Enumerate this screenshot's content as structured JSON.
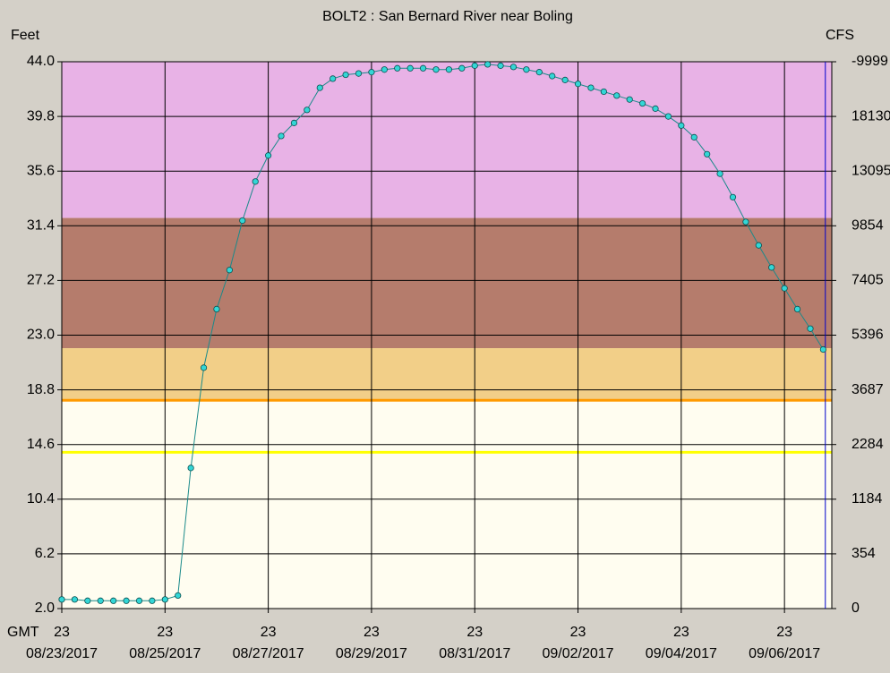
{
  "chart_data": {
    "type": "scatter",
    "title": "BOLT2  :  San Bernard River near Boling",
    "y_label": "Feet",
    "y2_label": "CFS",
    "x_label": "GMT",
    "xtick_hour": "23",
    "xlim": [
      "08/23/2017 23:00",
      "09/07/2017 21:00"
    ],
    "xticks": [
      {
        "value": "08/23/2017 23:00",
        "label": "08/23/2017"
      },
      {
        "value": "08/25/2017 23:00",
        "label": "08/25/2017"
      },
      {
        "value": "08/27/2017 23:00",
        "label": "08/27/2017"
      },
      {
        "value": "08/29/2017 23:00",
        "label": "08/29/2017"
      },
      {
        "value": "08/31/2017 23:00",
        "label": "08/31/2017"
      },
      {
        "value": "09/02/2017 23:00",
        "label": "09/02/2017"
      },
      {
        "value": "09/04/2017 23:00",
        "label": "09/04/2017"
      },
      {
        "value": "09/06/2017 23:00",
        "label": "09/06/2017"
      }
    ],
    "ylim": [
      2.0,
      44.0
    ],
    "yticks": [
      {
        "value": 2,
        "label": "2.0"
      },
      6.2,
      10.4,
      14.6,
      18.8,
      {
        "value": 23,
        "label": "23.0"
      },
      27.2,
      31.4,
      35.6,
      39.8,
      {
        "value": 44,
        "label": "44.0"
      }
    ],
    "y2ticks": [
      0,
      354,
      1184,
      2284,
      3687,
      5396,
      7405,
      9854,
      13095,
      18130,
      -9999
    ],
    "grid": true,
    "background": "#fffdf0",
    "bands": [
      {
        "value": 32,
        "color": "#e8b2e6"
      },
      {
        "value": 22,
        "color": "#b57c6c"
      },
      {
        "value": 18,
        "color": "#f2cf88"
      }
    ],
    "lines": [
      {
        "value": 18,
        "color": "#ff9a00"
      },
      {
        "value": 14,
        "color": "#ffff00"
      }
    ],
    "now_line": {
      "x": "09/07/2017 18:00",
      "color": "#0000cc"
    },
    "series": [
      {
        "color": "#33d6d6",
        "x": [
          "08/23/2017 23:00",
          "08/24/2017 05:00",
          "08/24/2017 11:00",
          "08/24/2017 17:00",
          "08/24/2017 23:00",
          "08/25/2017 05:00",
          "08/25/2017 11:00",
          "08/25/2017 17:00",
          "08/25/2017 23:00",
          "08/26/2017 05:00",
          "08/26/2017 11:00",
          "08/26/2017 17:00",
          "08/26/2017 23:00",
          "08/27/2017 05:00",
          "08/27/2017 11:00",
          "08/27/2017 17:00",
          "08/27/2017 23:00",
          "08/28/2017 05:00",
          "08/28/2017 11:00",
          "08/28/2017 17:00",
          "08/28/2017 23:00",
          "08/29/2017 05:00",
          "08/29/2017 11:00",
          "08/29/2017 17:00",
          "08/29/2017 23:00",
          "08/30/2017 05:00",
          "08/30/2017 11:00",
          "08/30/2017 17:00",
          "08/30/2017 23:00",
          "08/31/2017 05:00",
          "08/31/2017 11:00",
          "08/31/2017 17:00",
          "08/31/2017 23:00",
          "09/01/2017 05:00",
          "09/01/2017 11:00",
          "09/01/2017 17:00",
          "09/01/2017 23:00",
          "09/02/2017 05:00",
          "09/02/2017 11:00",
          "09/02/2017 17:00",
          "09/02/2017 23:00",
          "09/03/2017 05:00",
          "09/03/2017 11:00",
          "09/03/2017 17:00",
          "09/03/2017 23:00",
          "09/04/2017 05:00",
          "09/04/2017 11:00",
          "09/04/2017 17:00",
          "09/04/2017 23:00",
          "09/05/2017 05:00",
          "09/05/2017 11:00",
          "09/05/2017 17:00",
          "09/05/2017 23:00",
          "09/06/2017 05:00",
          "09/06/2017 11:00",
          "09/06/2017 17:00",
          "09/06/2017 23:00",
          "09/07/2017 05:00",
          "09/07/2017 11:00",
          "09/07/2017 17:00"
        ],
        "values": [
          2.7,
          2.7,
          2.6,
          2.6,
          2.6,
          2.6,
          2.6,
          2.6,
          2.7,
          3.0,
          12.8,
          20.5,
          25.0,
          28.0,
          31.8,
          34.8,
          36.8,
          38.3,
          39.3,
          40.3,
          42.0,
          42.7,
          43.0,
          43.1,
          43.2,
          43.4,
          43.5,
          43.5,
          43.5,
          43.4,
          43.4,
          43.5,
          43.7,
          43.8,
          43.7,
          43.6,
          43.4,
          43.2,
          42.9,
          42.6,
          42.3,
          42.0,
          41.7,
          41.4,
          41.1,
          40.8,
          40.4,
          39.8,
          39.1,
          38.2,
          36.9,
          35.4,
          33.6,
          31.7,
          29.9,
          28.2,
          26.6,
          25.0,
          23.5,
          21.9
        ]
      }
    ]
  }
}
